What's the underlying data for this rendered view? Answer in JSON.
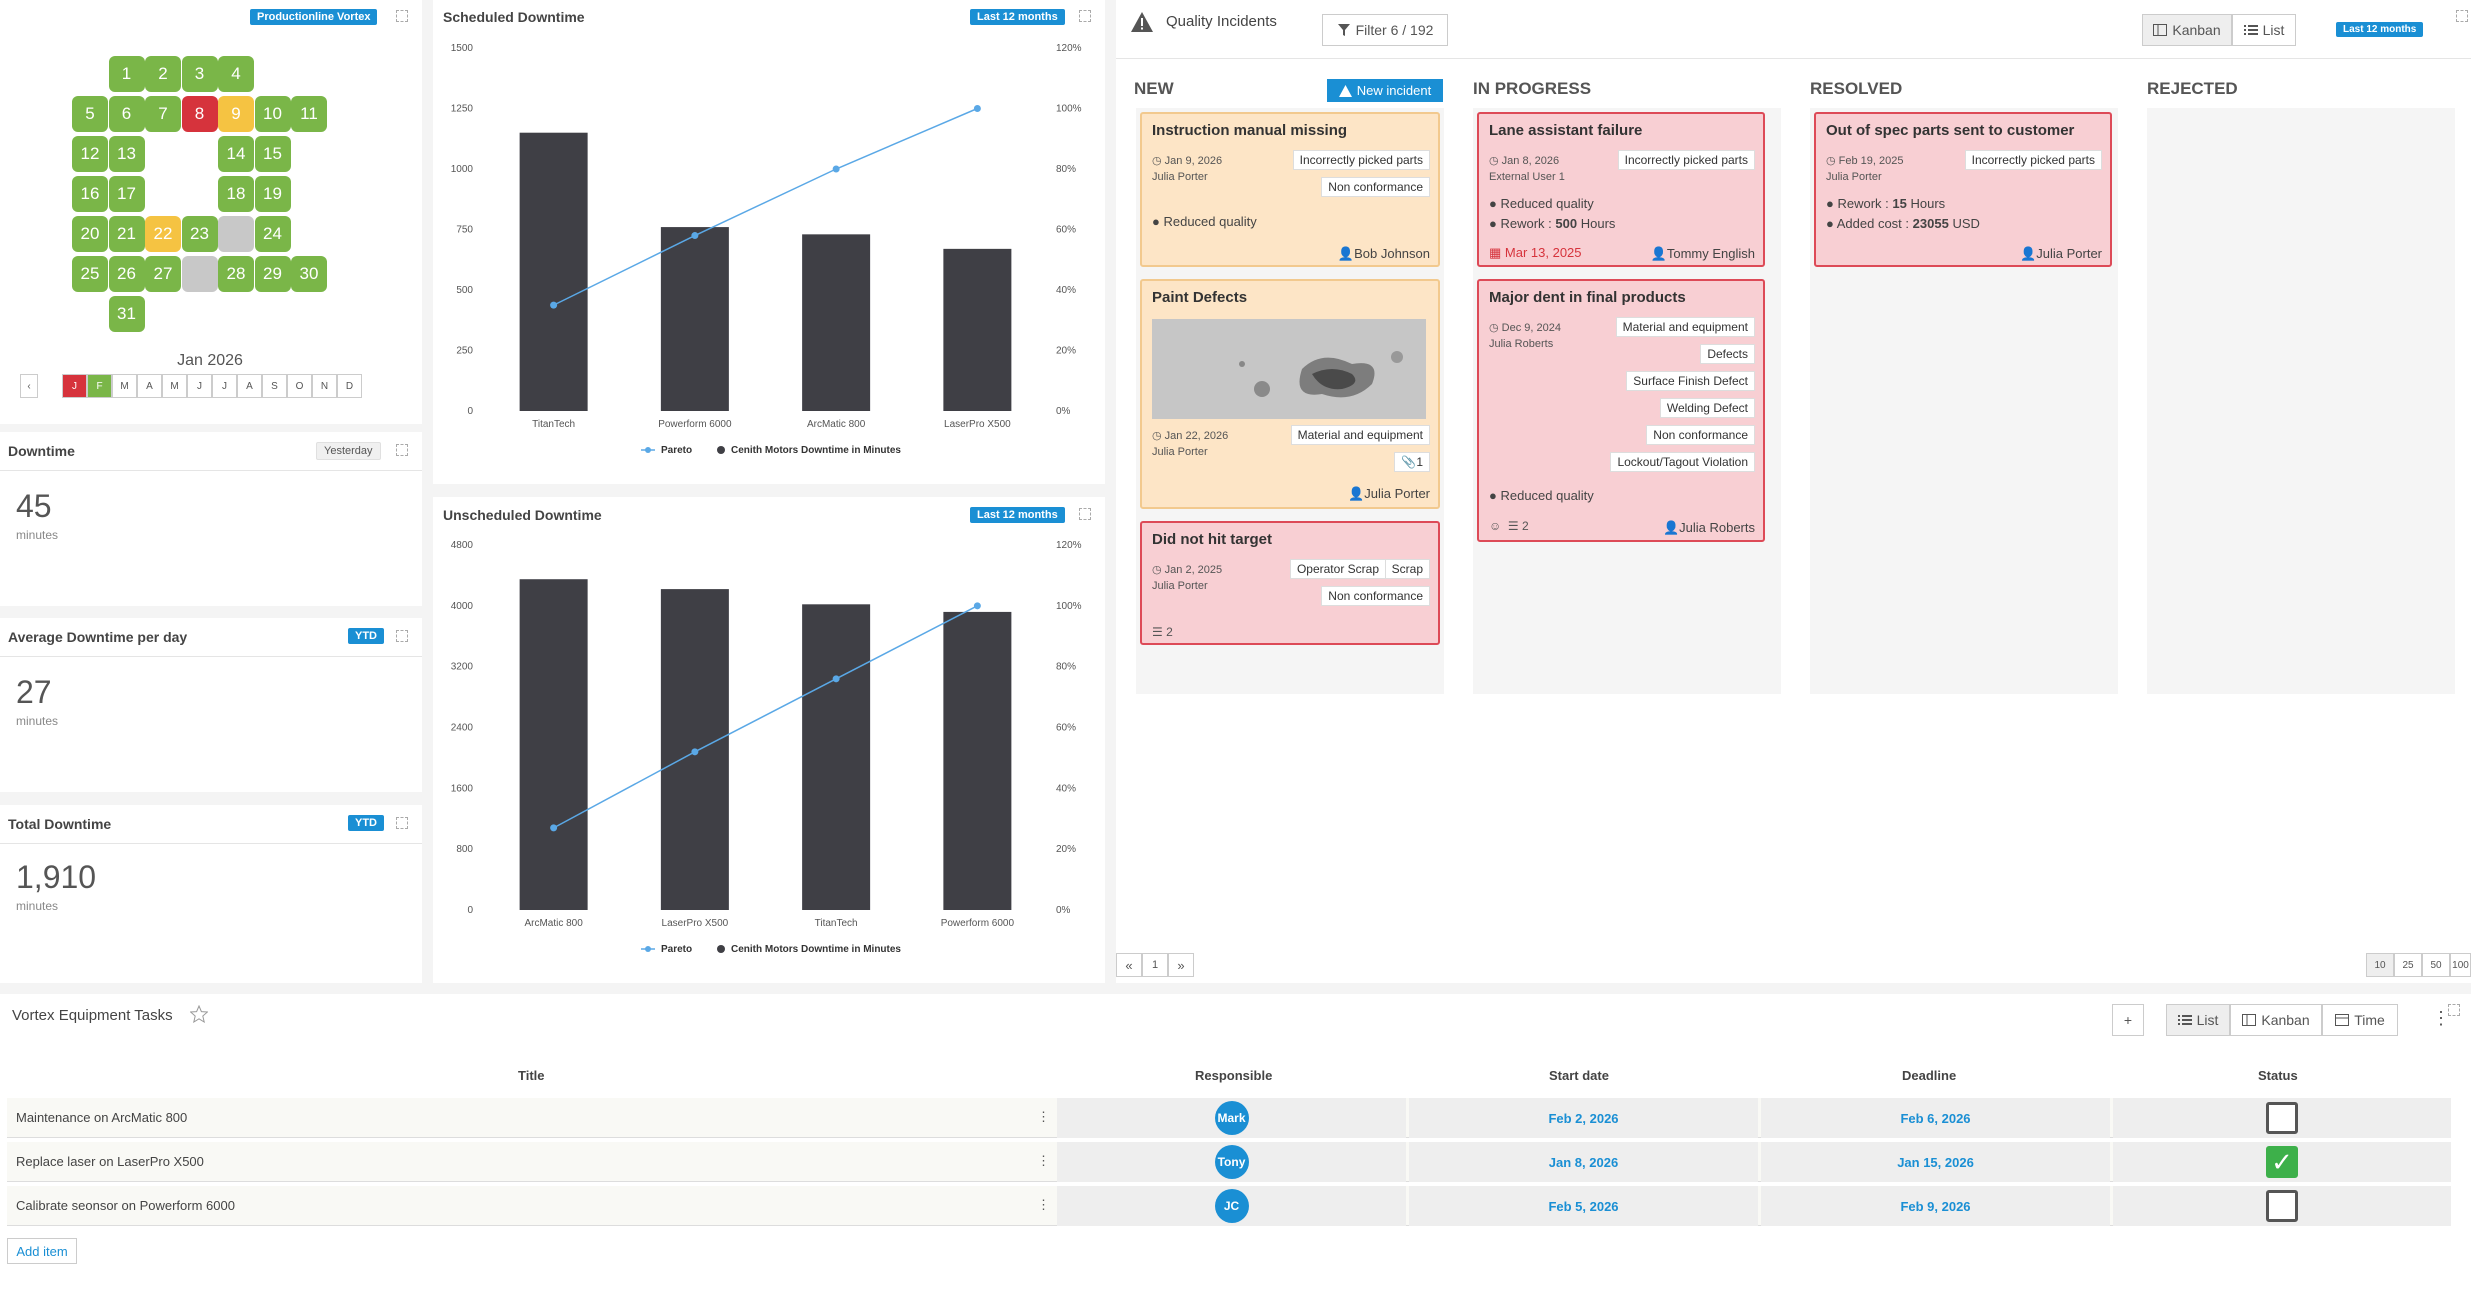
{
  "calendar": {
    "badge": "Productionline Vortex",
    "month_label": "Jan 2026",
    "prev": "‹",
    "days": [
      {
        "n": "1",
        "s": "g"
      },
      {
        "n": "2",
        "s": "g"
      },
      {
        "n": "3",
        "s": "g"
      },
      {
        "n": "4",
        "s": "g"
      },
      {
        "n": "5",
        "s": "g"
      },
      {
        "n": "6",
        "s": "g"
      },
      {
        "n": "7",
        "s": "g"
      },
      {
        "n": "8",
        "s": "r"
      },
      {
        "n": "9",
        "s": "y"
      },
      {
        "n": "10",
        "s": "g"
      },
      {
        "n": "11",
        "s": "g"
      },
      {
        "n": "12",
        "s": "g"
      },
      {
        "n": "13",
        "s": "g"
      },
      {
        "n": "14",
        "s": "g"
      },
      {
        "n": "15",
        "s": "g"
      },
      {
        "n": "16",
        "s": "g"
      },
      {
        "n": "17",
        "s": "g"
      },
      {
        "n": "18",
        "s": "g"
      },
      {
        "n": "19",
        "s": "g"
      },
      {
        "n": "20",
        "s": "g"
      },
      {
        "n": "21",
        "s": "g"
      },
      {
        "n": "22",
        "s": "y"
      },
      {
        "n": "23",
        "s": "g"
      },
      {
        "n": "",
        "s": "x"
      },
      {
        "n": "24",
        "s": "g"
      },
      {
        "n": "25",
        "s": "g"
      },
      {
        "n": "26",
        "s": "g"
      },
      {
        "n": "27",
        "s": "g"
      },
      {
        "n": "",
        "s": "x"
      },
      {
        "n": "28",
        "s": "g"
      },
      {
        "n": "29",
        "s": "g"
      },
      {
        "n": "30",
        "s": "g"
      },
      {
        "n": "31",
        "s": "g"
      }
    ],
    "months": [
      "J",
      "F",
      "M",
      "A",
      "M",
      "J",
      "J",
      "A",
      "S",
      "O",
      "N",
      "D"
    ]
  },
  "kpis": [
    {
      "title": "Downtime",
      "badge": "Yesterday",
      "value": "45",
      "unit": "minutes"
    },
    {
      "title": "Average Downtime per day",
      "badge": "YTD",
      "value": "27",
      "unit": "minutes"
    },
    {
      "title": "Total Downtime",
      "badge": "YTD",
      "value": "1,910",
      "unit": "minutes"
    }
  ],
  "chart_data": [
    {
      "type": "bar",
      "title": "Scheduled Downtime",
      "badge": "Last 12 months",
      "categories": [
        "TitanTech",
        "Powerform 6000",
        "ArcMatic 800",
        "LaserPro X500"
      ],
      "series": [
        {
          "name": "Cenith Motors Downtime in Minutes",
          "values": [
            1150,
            760,
            730,
            670
          ]
        },
        {
          "name": "Pareto",
          "values": [
            35,
            58,
            80,
            100
          ]
        }
      ],
      "ylim": [
        0,
        1500
      ],
      "yticks": [
        "1500",
        "1250",
        "1000",
        "750",
        "500",
        "250",
        "0"
      ],
      "y2ticks": [
        "120%",
        "100%",
        "80%",
        "60%",
        "40%",
        "20%",
        "0%"
      ],
      "legend": [
        "Pareto",
        "Cenith Motors Downtime in Minutes"
      ]
    },
    {
      "type": "bar",
      "title": "Unscheduled Downtime",
      "badge": "Last 12 months",
      "categories": [
        "ArcMatic 800",
        "LaserPro X500",
        "TitanTech",
        "Powerform 6000"
      ],
      "series": [
        {
          "name": "Cenith Motors Downtime in Minutes",
          "values": [
            4350,
            4220,
            4020,
            3920
          ]
        },
        {
          "name": "Pareto",
          "values": [
            27,
            52,
            76,
            100
          ]
        }
      ],
      "ylim": [
        0,
        4800
      ],
      "yticks": [
        "4800",
        "4000",
        "3200",
        "2400",
        "1600",
        "800",
        "0"
      ],
      "y2ticks": [
        "120%",
        "100%",
        "80%",
        "60%",
        "40%",
        "20%",
        "0%"
      ],
      "legend": [
        "Pareto",
        "Cenith Motors Downtime in Minutes"
      ]
    }
  ],
  "incidents": {
    "title": "Quality Incidents",
    "filter": "Filter 6 / 192",
    "view_kanban": "Kanban",
    "view_list": "List",
    "badge": "Last 12 months",
    "columns": [
      "NEW",
      "IN PROGRESS",
      "RESOLVED",
      "REJECTED"
    ],
    "new_button": "New incident",
    "cards": {
      "c1": {
        "title": "Instruction manual missing",
        "date": "Jan 9, 2026",
        "by": "Julia Porter",
        "tags": [
          "Incorrectly picked parts",
          "Non conformance"
        ],
        "impact": "Reduced quality",
        "user": "Bob Johnson"
      },
      "c2": {
        "title": "Paint Defects",
        "date": "Jan 22, 2026",
        "by": "Julia Porter",
        "tags": [
          "Material and equipment"
        ],
        "attach": "1",
        "user": "Julia Porter"
      },
      "c3": {
        "title": "Did not hit target",
        "date": "Jan 2, 2025",
        "by": "Julia Porter",
        "tags": [
          "Operator Scrap",
          "Scrap",
          "Non conformance"
        ],
        "list": "2"
      },
      "c4": {
        "title": "Lane assistant failure",
        "date": "Jan 8, 2026",
        "by": "External User 1",
        "tags": [
          "Incorrectly picked parts"
        ],
        "impact": "Reduced quality",
        "rework_label": "Rework :",
        "rework_val": "500",
        "rework_unit": "Hours",
        "due": "Mar 13, 2025",
        "user": "Tommy English"
      },
      "c5": {
        "title": "Major dent in final products",
        "date": "Dec 9, 2024",
        "by": "Julia Roberts",
        "tags": [
          "Material and equipment",
          "Defects",
          "Surface Finish Defect",
          "Welding Defect",
          "Non conformance",
          "Lockout/Tagout Violation"
        ],
        "impact": "Reduced quality",
        "list": "2",
        "user": "Julia Roberts"
      },
      "c6": {
        "title": "Out of spec parts sent to customer",
        "date": "Feb 19, 2025",
        "by": "Julia Porter",
        "tags": [
          "Incorrectly picked parts"
        ],
        "rework_label": "Rework :",
        "rework_val": "15",
        "rework_unit": "Hours",
        "cost_label": "Added cost :",
        "cost_val": "23055",
        "cost_unit": "USD",
        "user": "Julia Porter"
      }
    },
    "pager": {
      "first": "«",
      "page": "1",
      "last": "»",
      "sizes": [
        "10",
        "25",
        "50",
        "100"
      ]
    }
  },
  "tasks": {
    "title": "Vortex Equipment Tasks",
    "add": "+",
    "view_list": "List",
    "view_kanban": "Kanban",
    "view_time": "Time",
    "headers": {
      "title": "Title",
      "responsible": "Responsible",
      "start": "Start date",
      "deadline": "Deadline",
      "status": "Status"
    },
    "rows": [
      {
        "title": "Maintenance on ArcMatic 800",
        "resp": "Mark",
        "start": "Feb 2, 2026",
        "deadline": "Feb 6, 2026",
        "done": false
      },
      {
        "title": "Replace laser on LaserPro X500",
        "resp": "Tony",
        "start": "Jan 8, 2026",
        "deadline": "Jan 15, 2026",
        "done": true
      },
      {
        "title": "Calibrate seonsor on Powerform 6000",
        "resp": "JC",
        "start": "Feb 5, 2026",
        "deadline": "Feb 9, 2026",
        "done": false
      }
    ],
    "add_item": "Add item"
  },
  "colors": {
    "accent": "#1a8fd4",
    "green": "#7ab648",
    "red": "#d6333c",
    "yellow": "#f5c342",
    "bar": "#3f3f45",
    "line": "#5aa8e6"
  }
}
